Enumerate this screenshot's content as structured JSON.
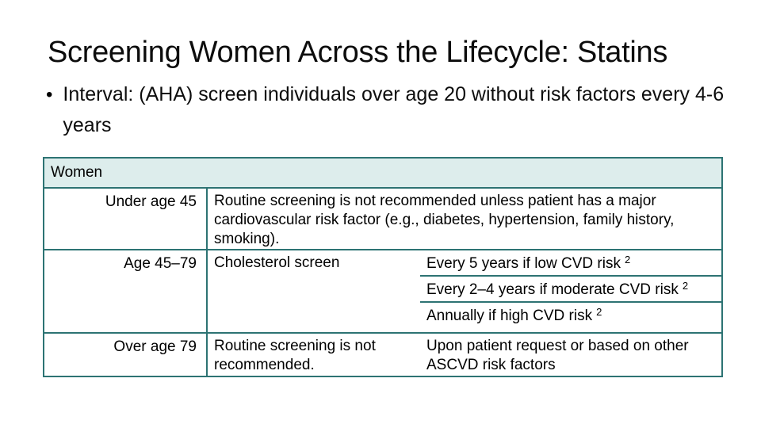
{
  "slide": {
    "title": "Screening Women Across the Lifecycle: Statins",
    "bullet_marker": "•",
    "bullet": "Interval: (AHA) screen individuals over age 20 without risk factors every 4-6 years"
  },
  "colors": {
    "table_border": "#2d7373",
    "table_header_bg": "#ddedec",
    "text": "#000000"
  },
  "table": {
    "header": "Women",
    "rows": [
      {
        "age": "Under age 45",
        "screen": "Routine screening is not recommended unless patient has a major cardiovascular risk factor (e.g., diabetes, hypertension, family history, smoking).",
        "intervals": []
      },
      {
        "age": "Age 45–79",
        "screen": "Cholesterol screen",
        "intervals": [
          {
            "text": "Every 5 years if low CVD risk",
            "sup": "2"
          },
          {
            "text": "Every 2–4 years if moderate CVD risk",
            "sup": "2"
          },
          {
            "text": "Annually if high CVD risk",
            "sup": "2"
          }
        ]
      },
      {
        "age": "Over age 79",
        "screen": "Routine screening is not recommended.",
        "intervals": [
          {
            "text": "Upon patient request or based on other ASCVD risk factors",
            "sup": ""
          }
        ]
      }
    ]
  }
}
